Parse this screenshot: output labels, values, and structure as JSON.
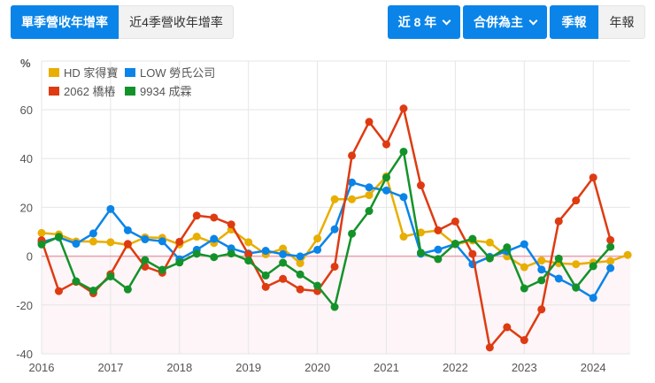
{
  "toolbar": {
    "left_tabs": [
      {
        "label": "單季營收年增率",
        "active": true
      },
      {
        "label": "近4季營收年增率",
        "active": false
      }
    ],
    "period_dropdown": {
      "label": "近 8 年"
    },
    "basis_dropdown": {
      "label": "合併為主"
    },
    "report_tabs": [
      {
        "label": "季報",
        "active": true
      },
      {
        "label": "年報",
        "active": false
      }
    ]
  },
  "colors": {
    "hd": "#e8ae00",
    "low": "#0a84e8",
    "t2062": "#de3b12",
    "t9934": "#14922a",
    "zero_line": "#e8a0b0",
    "negative_fill": "#fdf5f7",
    "grid": "#e6e6e6"
  },
  "chart_data": {
    "type": "line",
    "title": "",
    "ylabel": "%",
    "xlabel": "",
    "ylim": [
      -40,
      60
    ],
    "yticks": [
      60,
      40,
      20,
      0,
      -20,
      -40
    ],
    "xticks": [
      "2016",
      "2017",
      "2018",
      "2019",
      "2020",
      "2021",
      "2022",
      "2023",
      "2024"
    ],
    "grid": true,
    "legend_position": "top-left",
    "x": [
      "2016Q1",
      "2016Q2",
      "2016Q3",
      "2016Q4",
      "2017Q1",
      "2017Q2",
      "2017Q3",
      "2017Q4",
      "2018Q1",
      "2018Q2",
      "2018Q3",
      "2018Q4",
      "2019Q1",
      "2019Q2",
      "2019Q3",
      "2019Q4",
      "2020Q1",
      "2020Q2",
      "2020Q3",
      "2020Q4",
      "2021Q1",
      "2021Q2",
      "2021Q3",
      "2021Q4",
      "2022Q1",
      "2022Q2",
      "2022Q3",
      "2022Q4",
      "2023Q1",
      "2023Q2",
      "2023Q3",
      "2023Q4",
      "2024Q1",
      "2024Q2",
      "2024Q3"
    ],
    "series": [
      {
        "name": "HD 家得寶",
        "key": "hd",
        "values": [
          9.5,
          8.9,
          6,
          6,
          5.7,
          4.6,
          7.7,
          7.5,
          4.8,
          8,
          5.4,
          10.9,
          5.7,
          0.8,
          3.1,
          -2.9,
          7.2,
          23.3,
          23.3,
          25,
          32.7,
          8,
          9.7,
          10.5,
          4.8,
          6.4,
          5.6,
          -0.1,
          -4.5,
          -1.8,
          -2.9,
          -3.3,
          -2.6,
          -2,
          0.5
        ]
      },
      {
        "name": "LOW 勞氏公司",
        "key": "low",
        "values": [
          5.7,
          7.7,
          5.1,
          9.3,
          19.3,
          10.6,
          6.9,
          6.1,
          -1.3,
          2.6,
          7.1,
          3.2,
          1.1,
          2.2,
          0.8,
          -0.1,
          2.6,
          11,
          30.2,
          28.2,
          26.9,
          24.2,
          1,
          2.7,
          5,
          -3.3,
          -0.3,
          2,
          4.9,
          -5.5,
          -9.2,
          -12.8,
          -17.1,
          -4.9,
          null
        ]
      },
      {
        "name": "2062 橋樁",
        "key": "t2062",
        "values": [
          6.5,
          -14.3,
          -10.5,
          -15.2,
          -7.4,
          5,
          -4.3,
          -6.8,
          5.9,
          16.6,
          15.8,
          13,
          0.7,
          -12.6,
          -9.3,
          -13.6,
          -14.3,
          -4.3,
          41.2,
          55,
          45.8,
          60.5,
          29,
          10.6,
          14.2,
          0.9,
          -37.4,
          -29.1,
          -34.4,
          -21.8,
          14.3,
          22.8,
          32.2,
          6.6,
          null
        ]
      },
      {
        "name": "9934 成霖",
        "key": "t9934",
        "values": [
          4.8,
          7.9,
          -10.3,
          -14.1,
          -8.3,
          -13.6,
          -1.6,
          -5.6,
          -2.6,
          1,
          -0.4,
          1.1,
          -1.8,
          -7.9,
          -2.7,
          -7.5,
          -12.1,
          -20.8,
          9.2,
          18.5,
          32.2,
          42.8,
          1.4,
          -1.2,
          5.1,
          7.1,
          -0.9,
          3.6,
          -13.2,
          -9.9,
          -1,
          -12.9,
          -4.1,
          3.8,
          null
        ]
      }
    ]
  }
}
